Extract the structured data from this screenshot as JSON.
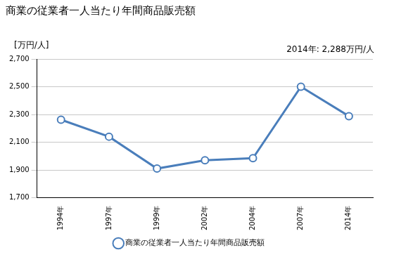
{
  "chart_data": {
    "type": "line",
    "title": "商業の従業者一人当たり年間商品販売額",
    "ylabel": "[万円/人]",
    "annotations": [
      "2014年: 2,288万円/人"
    ],
    "categories": [
      "1994年",
      "1997年",
      "1999年",
      "2002年",
      "2004年",
      "2007年",
      "2014年"
    ],
    "series": [
      {
        "name": "商業の従業者一人当たり年間商品販売額",
        "color": "#4a7ebb",
        "marker": "circle",
        "values": [
          2262,
          2140,
          1910,
          1970,
          1985,
          2500,
          2288
        ]
      }
    ],
    "ylim": [
      1700,
      2700
    ],
    "yticks": [
      {
        "value": 1700,
        "label": "1,700"
      },
      {
        "value": 1900,
        "label": "1,900"
      },
      {
        "value": 2100,
        "label": "2,100"
      },
      {
        "value": 2300,
        "label": "2,300"
      },
      {
        "value": 2500,
        "label": "2,500"
      },
      {
        "value": 2700,
        "label": "2,700"
      }
    ],
    "grid": true,
    "legend": "bottom"
  }
}
